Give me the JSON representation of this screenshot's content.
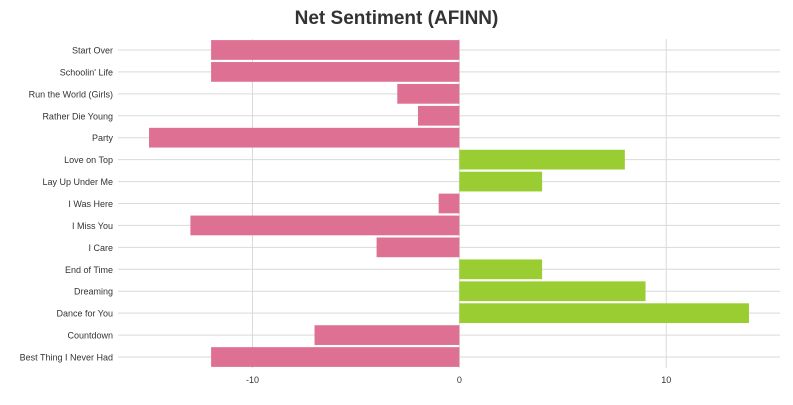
{
  "chart_data": {
    "type": "bar",
    "orientation": "horizontal",
    "title": "Net Sentiment (AFINN)",
    "xlabel": "",
    "ylabel": "",
    "xlim": [
      -16.5,
      15.5
    ],
    "xticks": [
      -10,
      0,
      10
    ],
    "grid": true,
    "legend": "none",
    "categories": [
      "Start Over",
      "Schoolin' Life",
      "Run the World (Girls)",
      "Rather Die Young",
      "Party",
      "Love on Top",
      "Lay Up Under Me",
      "I Was Here",
      "I Miss You",
      "I Care",
      "End of Time",
      "Dreaming",
      "Dance for You",
      "Countdown",
      "Best Thing I Never Had"
    ],
    "values": [
      -12,
      -12,
      -3,
      -2,
      -15,
      8,
      4,
      -1,
      -13,
      -4,
      4,
      9,
      14,
      -7,
      -12
    ],
    "colors": {
      "negative": "#DE7093",
      "positive": "#9ACD32",
      "grid": "#D9D9D9",
      "text": "#333333"
    }
  }
}
